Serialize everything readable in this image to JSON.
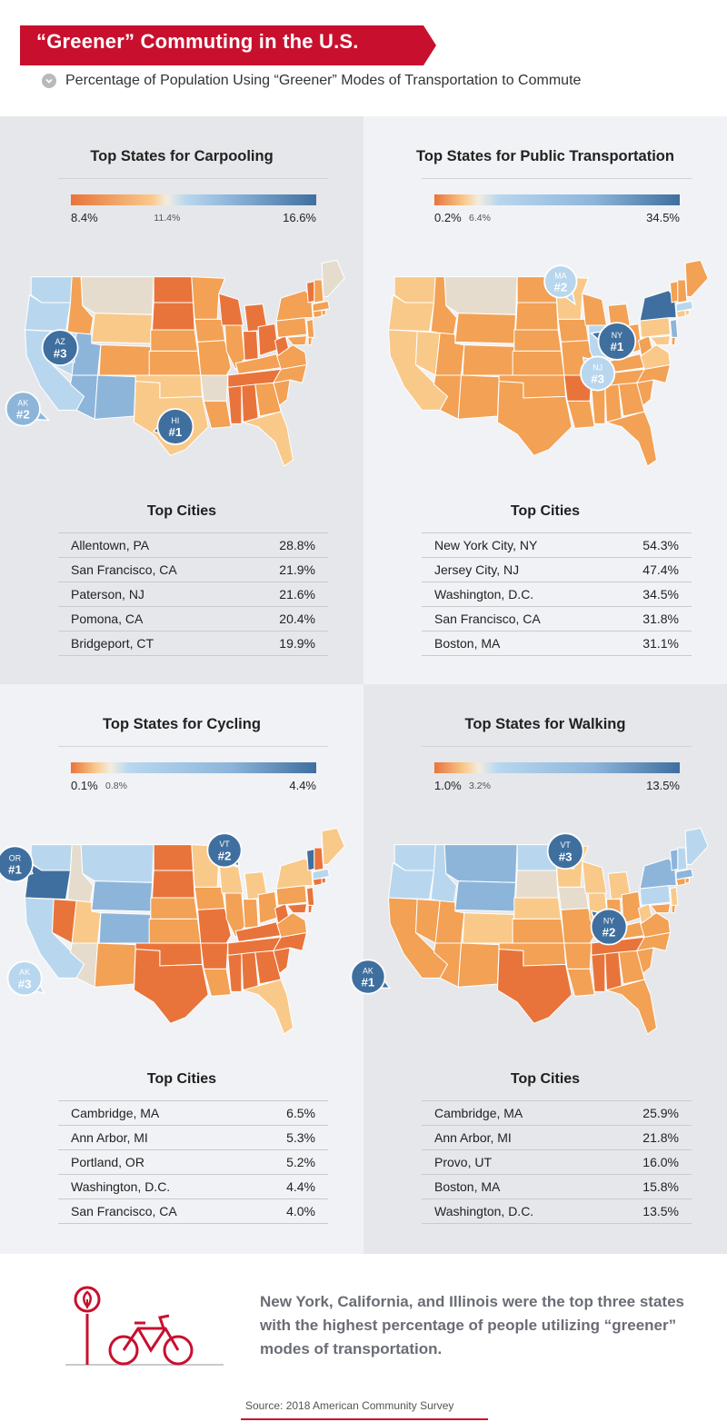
{
  "header": {
    "title": "“Greener” Commuting in the U.S.",
    "subtitle": "Percentage of Population Using “Greener” Modes of Transportation to Commute",
    "accent_color": "#c8102e",
    "subtitle_icon": "chevron-down-circle-icon"
  },
  "colors": {
    "orange_dark": "#e8743b",
    "orange_mid": "#f2a155",
    "orange_light": "#f9c98a",
    "beige": "#e6dccd",
    "blue_light": "#b8d7ee",
    "blue_mid": "#8db5da",
    "blue_dark": "#3f6f9f"
  },
  "panels": [
    {
      "id": "carpooling",
      "title": "Top States for Carpooling",
      "legend": {
        "min": "8.4%",
        "mid": "11.4%",
        "max": "16.6%",
        "mid_fraction": 0.39
      },
      "callouts": [
        {
          "state": "AZ",
          "rank": "#3"
        },
        {
          "state": "AK",
          "rank": "#2"
        },
        {
          "state": "HI",
          "rank": "#1"
        }
      ],
      "cities_title": "Top Cities",
      "cities": [
        {
          "name": "Allentown, PA",
          "value": "28.8%"
        },
        {
          "name": "San Francisco, CA",
          "value": "21.9%"
        },
        {
          "name": "Paterson, NJ",
          "value": "21.6%"
        },
        {
          "name": "Pomona, CA",
          "value": "20.4%"
        },
        {
          "name": "Bridgeport, CT",
          "value": "19.9%"
        }
      ]
    },
    {
      "id": "public-transportation",
      "title": "Top States for Public Transportation",
      "legend": {
        "min": "0.2%",
        "mid": "6.4%",
        "max": "34.5%",
        "mid_fraction": 0.18
      },
      "callouts": [
        {
          "state": "MA",
          "rank": "#2"
        },
        {
          "state": "NY",
          "rank": "#1"
        },
        {
          "state": "NJ",
          "rank": "#3"
        }
      ],
      "cities_title": "Top Cities",
      "cities": [
        {
          "name": "New York City, NY",
          "value": "54.3%"
        },
        {
          "name": "Jersey City, NJ",
          "value": "47.4%"
        },
        {
          "name": "Washington, D.C.",
          "value": "34.5%"
        },
        {
          "name": "San Francisco, CA",
          "value": "31.8%"
        },
        {
          "name": "Boston, MA",
          "value": "31.1%"
        }
      ]
    },
    {
      "id": "cycling",
      "title": "Top States for Cycling",
      "legend": {
        "min": "0.1%",
        "mid": "0.8%",
        "max": "4.4%",
        "mid_fraction": 0.16
      },
      "callouts": [
        {
          "state": "OR",
          "rank": "#1"
        },
        {
          "state": "VT",
          "rank": "#2"
        },
        {
          "state": "AK",
          "rank": "#3"
        }
      ],
      "cities_title": "Top Cities",
      "cities": [
        {
          "name": "Cambridge, MA",
          "value": "6.5%"
        },
        {
          "name": "Ann Arbor, MI",
          "value": "5.3%"
        },
        {
          "name": "Portland, OR",
          "value": "5.2%"
        },
        {
          "name": "Washington, D.C.",
          "value": "4.4%"
        },
        {
          "name": "San Francisco, CA",
          "value": "4.0%"
        }
      ]
    },
    {
      "id": "walking",
      "title": "Top States for Walking",
      "legend": {
        "min": "1.0%",
        "mid": "3.2%",
        "max": "13.5%",
        "mid_fraction": 0.18
      },
      "callouts": [
        {
          "state": "VT",
          "rank": "#3"
        },
        {
          "state": "NY",
          "rank": "#2"
        },
        {
          "state": "AK",
          "rank": "#1"
        }
      ],
      "cities_title": "Top Cities",
      "cities": [
        {
          "name": "Cambridge, MA",
          "value": "25.9%"
        },
        {
          "name": "Ann Arbor, MI",
          "value": "21.8%"
        },
        {
          "name": "Provo, UT",
          "value": "16.0%"
        },
        {
          "name": "Boston, MA",
          "value": "15.8%"
        },
        {
          "name": "Washington, D.C.",
          "value": "13.5%"
        }
      ]
    }
  ],
  "footer": {
    "statement": "New York, California, and Illinois were the top three states with the highest percentage of people utilizing “greener” modes of transportation.",
    "icon": "bike-station-icon",
    "source": "Source: 2018 American Community Survey"
  }
}
